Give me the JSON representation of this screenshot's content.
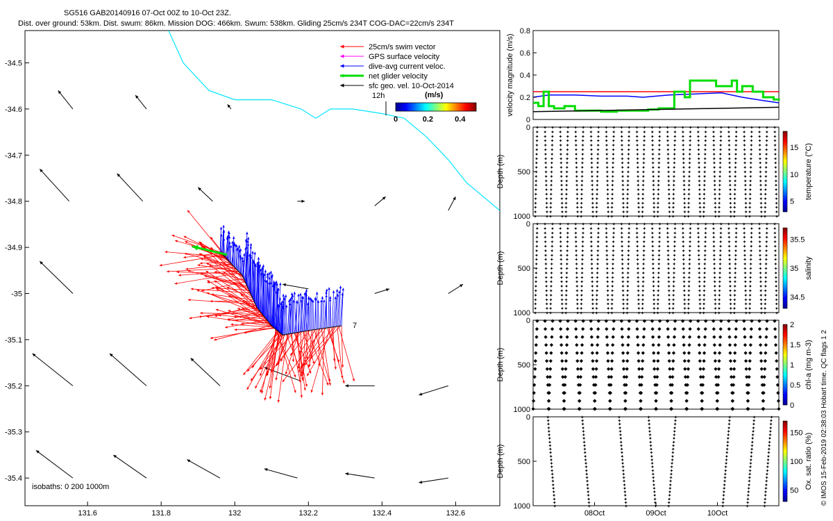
{
  "header": {
    "title_line1": "SG516 GAB20140916 07-Oct 00Z to 10-Oct 23Z.",
    "title_line2": "Dist. over ground: 53km. Dist. swum: 86km. Mission DOG: 466km. Swum: 538km. Gliding 25cm/s 234T COG-DAC=22cm/s 234T"
  },
  "side_credit": "© IMOS 15-Feb-2019 02:38:03 Hobart time. QC flags 1  2",
  "colors": {
    "swim": "#ff0000",
    "gps": "#ff00ff",
    "dac": "#0000ff",
    "net": "#00dd00",
    "sfc": "#000000",
    "coast": "#00e5ff",
    "colormap": [
      "#00008f",
      "#0000ff",
      "#007fff",
      "#00ffff",
      "#7fff7f",
      "#ffff00",
      "#ff7f00",
      "#ff0000",
      "#7f0000"
    ]
  },
  "chart_data": [
    {
      "type": "map",
      "xlim": [
        131.43,
        132.72
      ],
      "ylim": [
        -35.46,
        -34.43
      ],
      "x_ticks": [
        "131.6",
        "131.8",
        "132",
        "132.2",
        "132.4",
        "132.6"
      ],
      "y_ticks": [
        "-34.5",
        "-34.6",
        "-34.7",
        "-34.8",
        "-34.9",
        "-35",
        "-35.1",
        "-35.2",
        "-35.3",
        "-35.4"
      ],
      "legend": [
        {
          "label": "25cm/s swim vector",
          "color": "#ff0000"
        },
        {
          "label": "GPS surface velocity",
          "color": "#ff00ff"
        },
        {
          "label": "dive-avg current veloc.",
          "color": "#0000ff"
        },
        {
          "label": "net glider velocity",
          "color": "#00dd00"
        },
        {
          "label": "sfc geo. vel. 10-Oct-2014",
          "color": "#000000"
        }
      ],
      "colorbar": {
        "label": "(m/s)",
        "ticks": [
          "0",
          "0.2",
          "0.4"
        ],
        "range": [
          0,
          0.5
        ]
      },
      "marker_12h": "12h",
      "end_label": "7",
      "isobaths_label": "isobaths: 0   200  1000m",
      "track": [
        [
          131.96,
          -34.91
        ],
        [
          132.02,
          -34.96
        ],
        [
          132.06,
          -35.03
        ],
        [
          132.1,
          -35.07
        ],
        [
          132.13,
          -35.09
        ],
        [
          132.2,
          -35.08
        ],
        [
          132.29,
          -35.07
        ]
      ],
      "coastline": [
        [
          131.82,
          -34.43
        ],
        [
          131.86,
          -34.5
        ],
        [
          131.93,
          -34.56
        ],
        [
          132.0,
          -34.58
        ],
        [
          132.1,
          -34.58
        ],
        [
          132.18,
          -34.6
        ],
        [
          132.22,
          -34.62
        ],
        [
          132.26,
          -34.6
        ],
        [
          132.32,
          -34.6
        ],
        [
          132.4,
          -34.61
        ],
        [
          132.46,
          -34.62
        ],
        [
          132.52,
          -34.66
        ],
        [
          132.58,
          -34.71
        ],
        [
          132.63,
          -34.76
        ],
        [
          132.69,
          -34.8
        ],
        [
          132.72,
          -34.82
        ]
      ],
      "sfc_vectors": [
        {
          "lon": 131.56,
          "lat": -34.6,
          "dlon": -0.04,
          "dlat": 0.04
        },
        {
          "lon": 131.76,
          "lat": -34.6,
          "dlon": -0.03,
          "dlat": 0.03
        },
        {
          "lon": 131.99,
          "lat": -34.6,
          "dlon": -0.01,
          "dlat": 0.01
        },
        {
          "lon": 131.55,
          "lat": -34.8,
          "dlon": -0.08,
          "dlat": 0.07
        },
        {
          "lon": 131.75,
          "lat": -34.8,
          "dlon": -0.07,
          "dlat": 0.06
        },
        {
          "lon": 131.94,
          "lat": -34.8,
          "dlon": -0.04,
          "dlat": 0.03
        },
        {
          "lon": 132.17,
          "lat": -34.8,
          "dlon": 0.02,
          "dlat": 0.0
        },
        {
          "lon": 132.38,
          "lat": -34.81,
          "dlon": 0.03,
          "dlat": 0.02
        },
        {
          "lon": 132.58,
          "lat": -34.82,
          "dlon": 0.02,
          "dlat": 0.03
        },
        {
          "lon": 131.56,
          "lat": -35.0,
          "dlon": -0.09,
          "dlat": 0.07
        },
        {
          "lon": 132.2,
          "lat": -34.99,
          "dlon": -0.07,
          "dlat": 0.01
        },
        {
          "lon": 132.38,
          "lat": -35.0,
          "dlon": 0.04,
          "dlat": 0.01
        },
        {
          "lon": 132.58,
          "lat": -35.0,
          "dlon": 0.04,
          "dlat": 0.02
        },
        {
          "lon": 131.56,
          "lat": -35.2,
          "dlon": -0.11,
          "dlat": 0.07
        },
        {
          "lon": 131.76,
          "lat": -35.2,
          "dlon": -0.1,
          "dlat": 0.07
        },
        {
          "lon": 131.96,
          "lat": -35.2,
          "dlon": -0.08,
          "dlat": 0.06
        },
        {
          "lon": 132.18,
          "lat": -35.19,
          "dlon": -0.1,
          "dlat": 0.03
        },
        {
          "lon": 132.38,
          "lat": -35.2,
          "dlon": -0.08,
          "dlat": 0.0
        },
        {
          "lon": 132.58,
          "lat": -35.2,
          "dlon": -0.08,
          "dlat": -0.02
        },
        {
          "lon": 131.56,
          "lat": -35.4,
          "dlon": -0.1,
          "dlat": 0.06
        },
        {
          "lon": 131.76,
          "lat": -35.4,
          "dlon": -0.09,
          "dlat": 0.05
        },
        {
          "lon": 131.96,
          "lat": -35.4,
          "dlon": -0.09,
          "dlat": 0.04
        },
        {
          "lon": 132.17,
          "lat": -35.4,
          "dlon": -0.09,
          "dlat": 0.02
        },
        {
          "lon": 132.38,
          "lat": -35.4,
          "dlon": -0.08,
          "dlat": 0.01
        },
        {
          "lon": 132.58,
          "lat": -35.4,
          "dlon": -0.08,
          "dlat": -0.01
        }
      ]
    },
    {
      "type": "line",
      "ylabel": "velocity magnitude (m/s)",
      "ylim": [
        0,
        0.8
      ],
      "y_ticks": [
        "0",
        "0.2",
        "0.4",
        "0.6",
        "0.8"
      ],
      "x_range_days": [
        0,
        4.7
      ],
      "series": [
        {
          "color": "#ff0000",
          "x": [
            0,
            4.7
          ],
          "values": [
            0.25,
            0.25
          ]
        },
        {
          "color": "#0000ff",
          "x": [
            0,
            0.3,
            0.8,
            1.3,
            1.8,
            2.1,
            2.6,
            3.1,
            3.6,
            4.0,
            4.4,
            4.7
          ],
          "values": [
            0.2,
            0.22,
            0.22,
            0.21,
            0.21,
            0.2,
            0.22,
            0.23,
            0.24,
            0.2,
            0.17,
            0.15
          ]
        },
        {
          "color": "#00dd00",
          "x": [
            0,
            0.1,
            0.2,
            0.3,
            0.4,
            0.6,
            0.8,
            1.0,
            1.3,
            1.6,
            1.9,
            2.2,
            2.4,
            2.6,
            2.7,
            2.9,
            3.0,
            3.2,
            3.5,
            3.6,
            3.8,
            3.9,
            4.0,
            4.2,
            4.4,
            4.6,
            4.7
          ],
          "values": [
            0.15,
            0.12,
            0.25,
            0.12,
            0.1,
            0.12,
            0.08,
            0.08,
            0.07,
            0.08,
            0.08,
            0.09,
            0.1,
            0.1,
            0.25,
            0.2,
            0.35,
            0.35,
            0.3,
            0.3,
            0.35,
            0.25,
            0.3,
            0.25,
            0.2,
            0.18,
            0.17
          ]
        },
        {
          "color": "#000000",
          "x": [
            0,
            4.7
          ],
          "values": [
            0.07,
            0.11
          ]
        }
      ]
    },
    {
      "type": "scatter",
      "ylabel": "Depth (m)",
      "ylim": [
        1000,
        0
      ],
      "y_ticks": [
        "0",
        "500",
        "1000"
      ],
      "colorbar": {
        "label": "temperature (°C)",
        "ticks": [
          "5",
          "10",
          "15"
        ],
        "range": [
          3,
          18
        ]
      },
      "profile": "full",
      "profiles": 32
    },
    {
      "type": "scatter",
      "ylabel": "Depth (m)",
      "ylim": [
        1000,
        0
      ],
      "y_ticks": [
        "0",
        "500",
        "1000"
      ],
      "colorbar": {
        "label": "salinity",
        "ticks": [
          "34.5",
          "35",
          "35.5"
        ],
        "range": [
          34.3,
          35.7
        ]
      },
      "profile": "full",
      "profiles": 32
    },
    {
      "type": "scatter",
      "ylabel": "Depth (m)",
      "ylim": [
        1000,
        0
      ],
      "y_ticks": [
        "0",
        "500",
        "1000"
      ],
      "colorbar": {
        "label": "chl-a (mg m-3)",
        "ticks": [
          "0",
          "0.5",
          "1",
          "1.5",
          "2"
        ],
        "range": [
          0,
          2
        ]
      },
      "profile": "sparse",
      "profiles": 32
    },
    {
      "type": "scatter",
      "ylabel": "Depth (m)",
      "ylim": [
        1000,
        0
      ],
      "y_ticks": [
        "0",
        "500",
        "1000"
      ],
      "x_ticks": [
        "08Oct",
        "09Oct",
        "10Oct"
      ],
      "colorbar": {
        "label": "Ox. sat. ratio (%)",
        "ticks": [
          "50",
          "100",
          "150"
        ],
        "range": [
          30,
          170
        ]
      },
      "profile": "oxygen",
      "profiles": 10
    }
  ]
}
